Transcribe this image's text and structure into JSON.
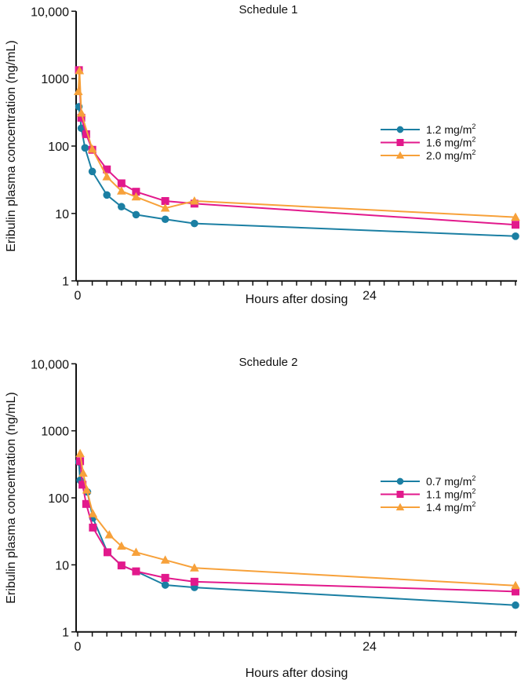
{
  "chart_data": [
    {
      "type": "line",
      "title": "Schedule 1",
      "xlabel": "Hours after dosing",
      "ylabel": "Eribulin plasma concentration (ng/mL)",
      "yscale": "log",
      "ylim": [
        1,
        10000
      ],
      "yticks": [
        1,
        10,
        100,
        1000,
        10000
      ],
      "ytick_labels": [
        "1",
        "10",
        "100",
        "1000",
        "10,000"
      ],
      "xlim": [
        0,
        36
      ],
      "xtick_step": 1.2,
      "xtick_labels": [
        {
          "value": 0,
          "label": "0"
        },
        {
          "value": 24,
          "label": "24"
        }
      ],
      "legend_position": "right",
      "series": [
        {
          "name": "1.2 mg/m",
          "sup": "2",
          "color": "#1b7fa3",
          "marker": "circle",
          "x": [
            0.1,
            0.3,
            0.6,
            1.2,
            2.4,
            3.6,
            4.8,
            7.2,
            9.6,
            36
          ],
          "y": [
            383,
            184,
            94,
            42,
            18.8,
            12.6,
            9.6,
            8.2,
            7.1,
            4.6
          ]
        },
        {
          "name": "1.6 mg/m",
          "sup": "2",
          "color": "#e2198c",
          "marker": "square",
          "x": [
            0.1,
            0.3,
            0.7,
            1.2,
            2.4,
            3.6,
            4.8,
            7.2,
            9.6,
            36
          ],
          "y": [
            1337,
            263,
            150,
            88,
            45,
            28,
            21,
            15.3,
            14,
            6.8
          ]
        },
        {
          "name": "2.0 mg/m",
          "sup": "2",
          "color": "#f7a13a",
          "marker": "triangle",
          "x": [
            0.05,
            0.15,
            0.3,
            1.2,
            2.4,
            3.6,
            4.8,
            7.2,
            9.6,
            36
          ],
          "y": [
            643,
            1313,
            308,
            90,
            35,
            21.5,
            17.6,
            12,
            15.3,
            8.8
          ]
        }
      ]
    },
    {
      "type": "line",
      "title": "Schedule 2",
      "xlabel": "Hours after dosing",
      "ylabel": "Eribulin plasma concentration (ng/mL)",
      "yscale": "log",
      "ylim": [
        1,
        10000
      ],
      "yticks": [
        1,
        10,
        100,
        1000,
        10000
      ],
      "ytick_labels": [
        "1",
        "10",
        "100",
        "1000",
        "10,000"
      ],
      "xlim": [
        0,
        36
      ],
      "xtick_step": 1.2,
      "xtick_labels": [
        {
          "value": 0,
          "label": "0"
        },
        {
          "value": 24,
          "label": "24"
        }
      ],
      "legend_position": "right",
      "series": [
        {
          "name": "0.7 mg/m",
          "sup": "2",
          "color": "#1b7fa3",
          "marker": "circle",
          "x": [
            0.1,
            0.2,
            0.8,
            1.25,
            2.45,
            3.6,
            4.8,
            7.2,
            9.6,
            36
          ],
          "y": [
            343,
            183,
            122,
            50,
            15.4,
            9.8,
            8.0,
            5.0,
            4.6,
            2.5
          ]
        },
        {
          "name": "1.1 mg/m",
          "sup": "2",
          "color": "#e2198c",
          "marker": "square",
          "x": [
            0.2,
            0.4,
            0.7,
            1.25,
            2.45,
            3.6,
            4.8,
            7.2,
            9.6,
            36
          ],
          "y": [
            352,
            157,
            81,
            36,
            15.4,
            9.8,
            8.0,
            6.4,
            5.6,
            4.0
          ]
        },
        {
          "name": "1.4 mg/m",
          "sup": "2",
          "color": "#f7a13a",
          "marker": "triangle",
          "x": [
            0.2,
            0.45,
            0.75,
            1.25,
            2.6,
            3.6,
            4.8,
            7.2,
            9.6,
            36
          ],
          "y": [
            457,
            233,
            131,
            58,
            28,
            19,
            15.4,
            11.8,
            9.0,
            4.9
          ]
        }
      ]
    }
  ]
}
